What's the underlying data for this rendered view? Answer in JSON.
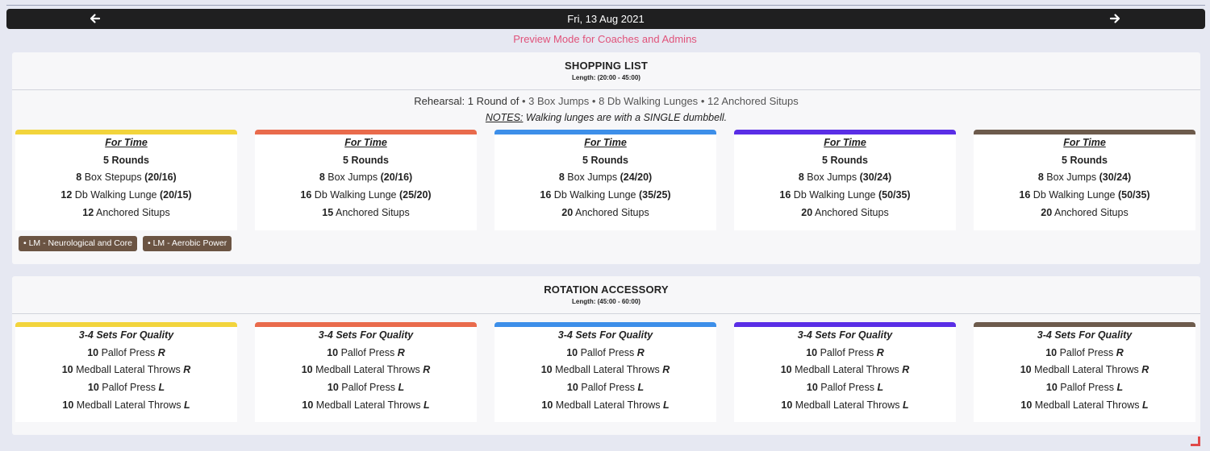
{
  "header": {
    "date": "Fri, 13 Aug 2021",
    "prev_icon": "arrow-left-icon",
    "next_icon": "arrow-right-icon",
    "preview": "Preview Mode for Coaches and Admins"
  },
  "colors": {
    "preview": "#e0527a",
    "tracks": [
      "#f2d43c",
      "#e96b4c",
      "#3d8fe9",
      "#5a2ee6",
      "#6d5b4c"
    ],
    "tag_bg": "#6b5443"
  },
  "shopping": {
    "title": "SHOPPING LIST",
    "length": "Length: (20:00 - 45:00)",
    "rehearsal": {
      "prefix": "Rehearsal: 1 Round of",
      "items": [
        "• 3 Box Jumps",
        "• 8 Db Walking Lunges",
        "• 12 Anchored Situps"
      ]
    },
    "notes": {
      "label": "NOTES:",
      "text": "Walking lunges are with a SINGLE dumbbell."
    },
    "cards": [
      {
        "format": "For Time",
        "rounds": "5 Rounds",
        "l1": {
          "n": "8",
          "t": "Box Stepups",
          "w": "(20/16)"
        },
        "l2": {
          "n": "12",
          "t": "Db Walking Lunge",
          "w": "(20/15)"
        },
        "l3": {
          "n": "12",
          "t": "Anchored Situps"
        }
      },
      {
        "format": "For Time",
        "rounds": "5 Rounds",
        "l1": {
          "n": "8",
          "t": "Box Jumps",
          "w": "(20/16)"
        },
        "l2": {
          "n": "16",
          "t": "Db Walking Lunge",
          "w": "(25/20)"
        },
        "l3": {
          "n": "15",
          "t": "Anchored Situps"
        }
      },
      {
        "format": "For Time",
        "rounds": "5 Rounds",
        "l1": {
          "n": "8",
          "t": "Box Jumps",
          "w": "(24/20)"
        },
        "l2": {
          "n": "16",
          "t": "Db Walking Lunge",
          "w": "(35/25)"
        },
        "l3": {
          "n": "20",
          "t": "Anchored Situps"
        }
      },
      {
        "format": "For Time",
        "rounds": "5 Rounds",
        "l1": {
          "n": "8",
          "t": "Box Jumps",
          "w": "(30/24)"
        },
        "l2": {
          "n": "16",
          "t": "Db Walking Lunge",
          "w": "(50/35)"
        },
        "l3": {
          "n": "20",
          "t": "Anchored Situps"
        }
      },
      {
        "format": "For Time",
        "rounds": "5 Rounds",
        "l1": {
          "n": "8",
          "t": "Box Jumps",
          "w": "(30/24)"
        },
        "l2": {
          "n": "16",
          "t": "Db Walking Lunge",
          "w": "(50/35)"
        },
        "l3": {
          "n": "20",
          "t": "Anchored Situps"
        }
      }
    ],
    "tags": [
      "• LM - Neurological and Core",
      "• LM - Aerobic Power"
    ]
  },
  "rotation": {
    "title": "ROTATION ACCESSORY",
    "length": "Length: (45:00 - 60:00)",
    "cards": [
      {
        "format": "3-4 Sets For Quality",
        "lines": [
          {
            "n": "10",
            "t": "Pallof Press",
            "s": "R"
          },
          {
            "n": "10",
            "t": "Medball Lateral Throws",
            "s": "R"
          },
          {
            "n": "10",
            "t": "Pallof Press",
            "s": "L"
          },
          {
            "n": "10",
            "t": "Medball Lateral Throws",
            "s": "L"
          }
        ]
      },
      {
        "format": "3-4 Sets For Quality",
        "lines": [
          {
            "n": "10",
            "t": "Pallof Press",
            "s": "R"
          },
          {
            "n": "10",
            "t": "Medball Lateral Throws",
            "s": "R"
          },
          {
            "n": "10",
            "t": "Pallof Press",
            "s": "L"
          },
          {
            "n": "10",
            "t": "Medball Lateral Throws",
            "s": "L"
          }
        ]
      },
      {
        "format": "3-4 Sets For Quality",
        "lines": [
          {
            "n": "10",
            "t": "Pallof Press",
            "s": "R"
          },
          {
            "n": "10",
            "t": "Medball Lateral Throws",
            "s": "R"
          },
          {
            "n": "10",
            "t": "Pallof Press",
            "s": "L"
          },
          {
            "n": "10",
            "t": "Medball Lateral Throws",
            "s": "L"
          }
        ]
      },
      {
        "format": "3-4 Sets For Quality",
        "lines": [
          {
            "n": "10",
            "t": "Pallof Press",
            "s": "R"
          },
          {
            "n": "10",
            "t": "Medball Lateral Throws",
            "s": "R"
          },
          {
            "n": "10",
            "t": "Pallof Press",
            "s": "L"
          },
          {
            "n": "10",
            "t": "Medball Lateral Throws",
            "s": "L"
          }
        ]
      },
      {
        "format": "3-4 Sets For Quality",
        "lines": [
          {
            "n": "10",
            "t": "Pallof Press",
            "s": "R"
          },
          {
            "n": "10",
            "t": "Medball Lateral Throws",
            "s": "R"
          },
          {
            "n": "10",
            "t": "Pallof Press",
            "s": "L"
          },
          {
            "n": "10",
            "t": "Medball Lateral Throws",
            "s": "L"
          }
        ]
      }
    ]
  },
  "footer": {
    "corner_icon": "resize-corner-icon"
  }
}
